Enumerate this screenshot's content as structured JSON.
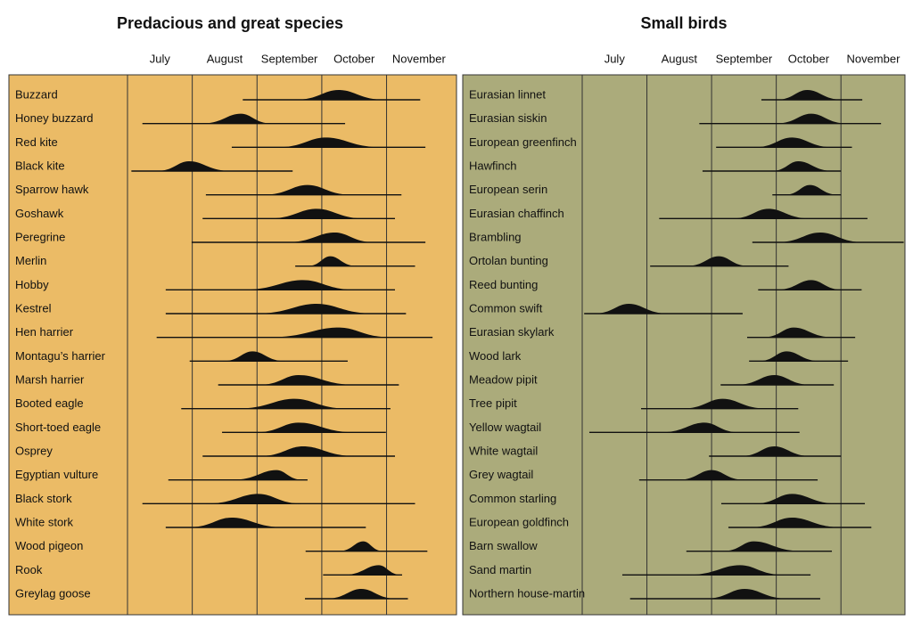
{
  "chart_data": [
    {
      "type": "migration",
      "title": "Predacious and great species",
      "background": "#ebbb66",
      "categories": [
        "July",
        "August",
        "September",
        "October",
        "November"
      ],
      "xlim": [
        0,
        5.08
      ],
      "rows": [
        {
          "label": "Buzzard",
          "start": 1.78,
          "end": 4.52,
          "hump_start": 2.58,
          "peak": 3.26,
          "hump_end": 3.98
        },
        {
          "label": "Honey buzzard",
          "start": 0.23,
          "end": 3.36,
          "hump_start": 1.13,
          "peak": 1.75,
          "hump_end": 2.23
        },
        {
          "label": "Red kite",
          "start": 1.61,
          "end": 4.6,
          "hump_start": 2.3,
          "peak": 3.06,
          "hump_end": 3.95
        },
        {
          "label": "Black kite",
          "start": 0.06,
          "end": 2.55,
          "hump_start": 0.44,
          "peak": 0.95,
          "hump_end": 1.61
        },
        {
          "label": "Sparrow hawk",
          "start": 1.21,
          "end": 4.23,
          "hump_start": 2.09,
          "peak": 2.78,
          "hump_end": 3.47
        },
        {
          "label": "Goshawk",
          "start": 1.16,
          "end": 4.13,
          "hump_start": 2.16,
          "peak": 2.92,
          "hump_end": 3.68
        },
        {
          "label": "Peregrine",
          "start": 0.99,
          "end": 4.6,
          "hump_start": 2.44,
          "peak": 3.2,
          "hump_end": 3.82
        },
        {
          "label": "Merlin",
          "start": 2.59,
          "end": 4.44,
          "hump_start": 2.78,
          "peak": 3.13,
          "hump_end": 3.54
        },
        {
          "label": "Hobby",
          "start": 0.59,
          "end": 4.13,
          "hump_start": 1.75,
          "peak": 2.71,
          "hump_end": 3.54
        },
        {
          "label": "Kestrel",
          "start": 0.59,
          "end": 4.3,
          "hump_start": 1.96,
          "peak": 2.92,
          "hump_end": 3.82
        },
        {
          "label": "Hen harrier",
          "start": 0.45,
          "end": 4.71,
          "hump_start": 2.16,
          "peak": 3.26,
          "hump_end": 4.09
        },
        {
          "label": "Montagu’s harrier",
          "start": 0.96,
          "end": 3.4,
          "hump_start": 1.47,
          "peak": 1.93,
          "hump_end": 2.44
        },
        {
          "label": "Marsh harrier",
          "start": 1.4,
          "end": 4.19,
          "hump_start": 2.02,
          "peak": 2.64,
          "hump_end": 3.54
        },
        {
          "label": "Booted eagle",
          "start": 0.83,
          "end": 4.06,
          "hump_start": 1.68,
          "peak": 2.58,
          "hump_end": 3.4
        },
        {
          "label": "Short-toed eagle",
          "start": 1.46,
          "end": 3.99,
          "hump_start": 1.96,
          "peak": 2.64,
          "hump_end": 3.54
        },
        {
          "label": "Osprey",
          "start": 1.16,
          "end": 4.13,
          "hump_start": 2.02,
          "peak": 2.71,
          "hump_end": 3.54
        },
        {
          "label": "Egyptian vulture",
          "start": 0.63,
          "end": 2.78,
          "hump_start": 1.61,
          "peak": 2.3,
          "hump_end": 2.71
        },
        {
          "label": "Black stork",
          "start": 0.23,
          "end": 4.44,
          "hump_start": 1.2,
          "peak": 2.02,
          "hump_end": 2.71
        },
        {
          "label": "White stork",
          "start": 0.59,
          "end": 3.68,
          "hump_start": 0.92,
          "peak": 1.61,
          "hump_end": 2.44
        },
        {
          "label": "Wood pigeon",
          "start": 2.75,
          "end": 4.63,
          "hump_start": 3.26,
          "peak": 3.64,
          "hump_end": 3.95
        },
        {
          "label": "Rook",
          "start": 3.02,
          "end": 4.24,
          "hump_start": 3.33,
          "peak": 3.88,
          "hump_end": 4.23
        },
        {
          "label": "Greylag goose",
          "start": 2.74,
          "end": 4.33,
          "hump_start": 3.06,
          "peak": 3.61,
          "hump_end": 4.16
        }
      ]
    },
    {
      "type": "migration",
      "title": "Small birds",
      "background": "#abab7b",
      "categories": [
        "July",
        "August",
        "September",
        "October",
        "November"
      ],
      "xlim": [
        0,
        4.99
      ],
      "rows": [
        {
          "label": "Eurasian linnet",
          "start": 2.77,
          "end": 4.33,
          "hump_start": 2.99,
          "peak": 3.48,
          "hump_end": 4.03
        },
        {
          "label": "Eurasian siskin",
          "start": 1.81,
          "end": 4.62,
          "hump_start": 2.99,
          "peak": 3.54,
          "hump_end": 4.1
        },
        {
          "label": "European greenfinch",
          "start": 2.07,
          "end": 4.17,
          "hump_start": 2.65,
          "peak": 3.24,
          "hump_end": 3.89
        },
        {
          "label": "Hawfinch",
          "start": 1.86,
          "end": 4.0,
          "hump_start": 2.92,
          "peak": 3.34,
          "hump_end": 3.89
        },
        {
          "label": "European serin",
          "start": 2.94,
          "end": 4.0,
          "hump_start": 3.13,
          "peak": 3.52,
          "hump_end": 3.96
        },
        {
          "label": "Eurasian chaffinch",
          "start": 1.19,
          "end": 4.41,
          "hump_start": 2.3,
          "peak": 2.88,
          "hump_end": 3.54
        },
        {
          "label": "Brambling",
          "start": 2.63,
          "end": 4.97,
          "hump_start": 2.99,
          "peak": 3.68,
          "hump_end": 4.37
        },
        {
          "label": "Ortolan bunting",
          "start": 1.05,
          "end": 3.19,
          "hump_start": 1.61,
          "peak": 2.11,
          "hump_end": 2.58
        },
        {
          "label": "Reed bunting",
          "start": 2.72,
          "end": 4.32,
          "hump_start": 2.99,
          "peak": 3.54,
          "hump_end": 4.03
        },
        {
          "label": "Common swift",
          "start": 0.03,
          "end": 2.48,
          "hump_start": 0.17,
          "peak": 0.72,
          "hump_end": 1.34
        },
        {
          "label": "Eurasian skylark",
          "start": 2.55,
          "end": 4.22,
          "hump_start": 2.79,
          "peak": 3.27,
          "hump_end": 3.89
        },
        {
          "label": "Wood lark",
          "start": 2.58,
          "end": 4.11,
          "hump_start": 2.72,
          "peak": 3.16,
          "hump_end": 3.68
        },
        {
          "label": "Meadow pipit",
          "start": 2.14,
          "end": 3.89,
          "hump_start": 2.37,
          "peak": 2.97,
          "hump_end": 3.54
        },
        {
          "label": "Tree pipit",
          "start": 0.91,
          "end": 3.34,
          "hump_start": 1.54,
          "peak": 2.17,
          "hump_end": 2.86
        },
        {
          "label": "Yellow wagtail",
          "start": 0.11,
          "end": 3.36,
          "hump_start": 1.2,
          "peak": 1.89,
          "hump_end": 2.44
        },
        {
          "label": "White wagtail",
          "start": 1.96,
          "end": 4.0,
          "hump_start": 2.44,
          "peak": 2.97,
          "hump_end": 3.54
        },
        {
          "label": "Grey wagtail",
          "start": 0.88,
          "end": 3.64,
          "hump_start": 1.48,
          "peak": 2.0,
          "hump_end": 2.51
        },
        {
          "label": "Common starling",
          "start": 2.15,
          "end": 4.37,
          "hump_start": 2.65,
          "peak": 3.24,
          "hump_end": 3.96
        },
        {
          "label": "European goldfinch",
          "start": 2.26,
          "end": 4.47,
          "hump_start": 2.58,
          "peak": 3.24,
          "hump_end": 4.03
        },
        {
          "label": "Barn swallow",
          "start": 1.61,
          "end": 3.86,
          "hump_start": 2.17,
          "peak": 2.65,
          "hump_end": 3.41
        },
        {
          "label": "Sand martin",
          "start": 0.62,
          "end": 3.53,
          "hump_start": 1.61,
          "peak": 2.44,
          "hump_end": 3.13
        },
        {
          "label": "Northern house-martin",
          "start": 0.74,
          "end": 3.68,
          "hump_start": 1.89,
          "peak": 2.51,
          "hump_end": 3.2
        }
      ]
    }
  ]
}
